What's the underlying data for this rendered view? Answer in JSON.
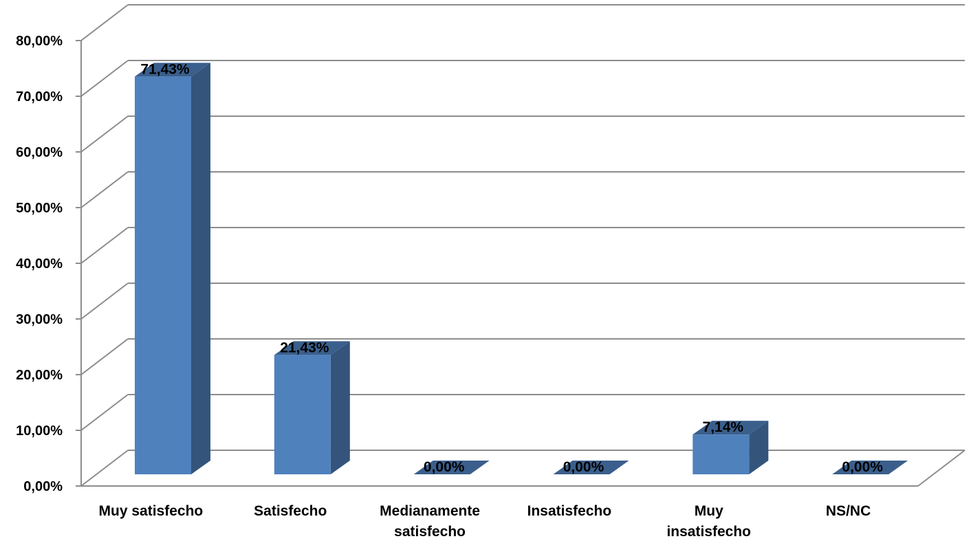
{
  "chart_data": {
    "type": "bar",
    "style": "3d-column",
    "title": "",
    "xlabel": "",
    "ylabel": "",
    "categories": [
      [
        "Muy satisfecho"
      ],
      [
        "Satisfecho"
      ],
      [
        "Medianamente",
        "satisfecho"
      ],
      [
        "Insatisfecho"
      ],
      [
        "Muy",
        "insatisfecho"
      ],
      [
        "NS/NC"
      ]
    ],
    "values": [
      71.43,
      21.43,
      0.0,
      0.0,
      7.14,
      0.0
    ],
    "data_labels": [
      "71,43%",
      "21,43%",
      "0,00%",
      "0,00%",
      "7,14%",
      "0,00%"
    ],
    "ylim": [
      0,
      80
    ],
    "y_ticks": [
      0,
      10,
      20,
      30,
      40,
      50,
      60,
      70,
      80
    ],
    "y_tick_labels": [
      "0,00%",
      "10,00%",
      "20,00%",
      "30,00%",
      "40,00%",
      "50,00%",
      "60,00%",
      "70,00%",
      "80,00%"
    ],
    "grid": true,
    "legend": "none",
    "colors": {
      "bar_front": "#4f81bd",
      "bar_side": "#34547c",
      "bar_top": "#3b5f8c",
      "grid": "#8c8c8c"
    }
  }
}
